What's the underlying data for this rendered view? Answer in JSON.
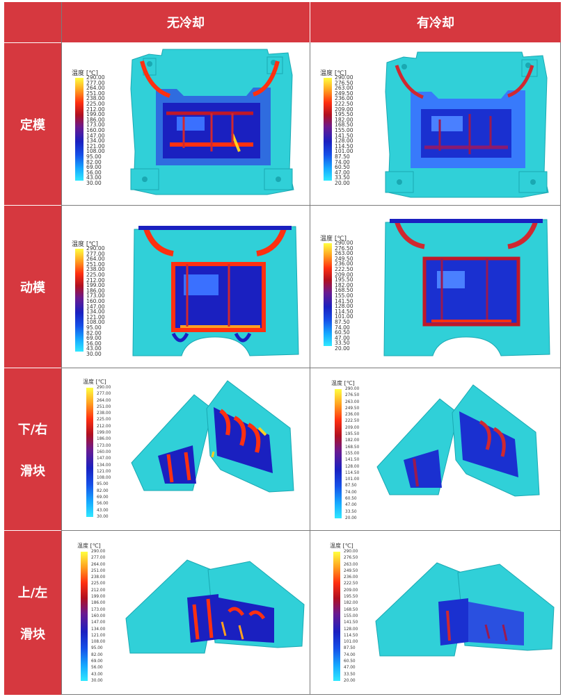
{
  "header": {
    "corner": "",
    "col1": "无冷却",
    "col2": "有冷却"
  },
  "rows": [
    {
      "label_lines": [
        "定模"
      ]
    },
    {
      "label_lines": [
        "动模"
      ]
    },
    {
      "label_lines": [
        "下/右",
        "滑块"
      ]
    },
    {
      "label_lines": [
        "上/左",
        "滑块"
      ]
    }
  ],
  "legend": {
    "title": "温度 [℃]",
    "no_cooling_values": [
      "290.00",
      "277.00",
      "264.00",
      "251.00",
      "238.00",
      "225.00",
      "212.00",
      "199.00",
      "186.00",
      "173.00",
      "160.00",
      "147.00",
      "134.00",
      "121.00",
      "108.00",
      "95.00",
      "82.00",
      "69.00",
      "56.00",
      "43.00",
      "30.00"
    ],
    "cooling_values": [
      "290.00",
      "276.50",
      "263.00",
      "249.50",
      "236.00",
      "222.50",
      "209.00",
      "195.50",
      "182.00",
      "168.50",
      "155.00",
      "141.50",
      "128.00",
      "114.50",
      "101.00",
      "87.50",
      "74.00",
      "60.50",
      "47.00",
      "33.50",
      "20.00"
    ]
  },
  "colors": {
    "header_bg": "#d6383f",
    "mold_base": "#30d0d8",
    "hot": "#ff3010",
    "mid": "#1a20c0",
    "peak": "#ffd020"
  }
}
